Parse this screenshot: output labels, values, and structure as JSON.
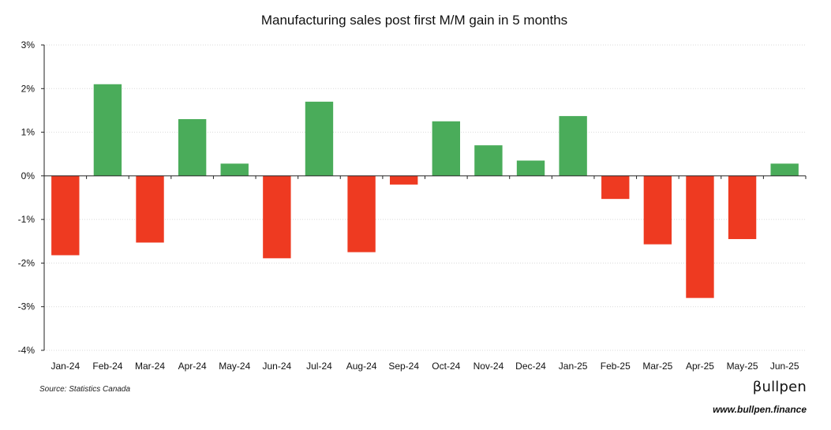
{
  "chart_data": {
    "type": "bar",
    "title": "Manufacturing sales post first M/M gain in 5 months",
    "xlabel": "",
    "ylabel": "",
    "ylim": [
      -4,
      3
    ],
    "yticks": [
      3,
      2,
      1,
      0,
      -1,
      -2,
      -3,
      -4
    ],
    "ytick_labels": [
      "3%",
      "2%",
      "1%",
      "0%",
      "-1%",
      "-2%",
      "-3%",
      "-4%"
    ],
    "grid": true,
    "categories": [
      "Jan-24",
      "Feb-24",
      "Mar-24",
      "Apr-24",
      "May-24",
      "Jun-24",
      "Jul-24",
      "Aug-24",
      "Sep-24",
      "Oct-24",
      "Nov-24",
      "Dec-24",
      "Jan-25",
      "Feb-25",
      "Mar-25",
      "Apr-25",
      "May-25",
      "Jun-25"
    ],
    "values": [
      -1.82,
      2.1,
      -1.53,
      1.3,
      0.28,
      -1.89,
      1.7,
      -1.75,
      -0.2,
      1.25,
      0.7,
      0.35,
      1.37,
      -0.53,
      -1.57,
      -2.8,
      -1.45,
      0.28
    ]
  },
  "colors": {
    "positive": "#4aac5a",
    "negative": "#ee3a21",
    "gridline": "#d9d9d9",
    "axis": "#222222"
  },
  "footer": {
    "source": "Source: Statistics Canada",
    "brand": "βullpen",
    "website": "www.bullpen.finance"
  }
}
